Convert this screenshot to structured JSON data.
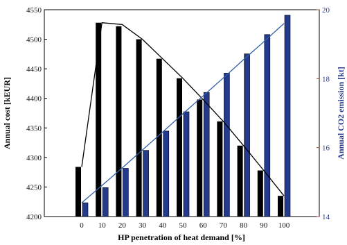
{
  "chart_data": {
    "type": "bar",
    "xlabel": "HP penetration of heat demand [%]",
    "ylabel_left": "Annual cost [kEUR]",
    "ylabel_right": "Annual CO2 emission [kt]",
    "ylim_left": [
      4200,
      4550
    ],
    "ylim_right": [
      14,
      20
    ],
    "yticks_left": [
      4200,
      4250,
      4300,
      4350,
      4400,
      4450,
      4500,
      4550
    ],
    "yticks_right": [
      14,
      16,
      18,
      20
    ],
    "categories": [
      "0",
      "10",
      "20",
      "30",
      "40",
      "50",
      "60",
      "70",
      "80",
      "90",
      "100"
    ],
    "series": [
      {
        "axis": "left",
        "color": "#000000",
        "values": [
          4284,
          4528,
          4522,
          4500,
          4467,
          4434,
          4398,
          4361,
          4320,
          4278,
          4235
        ]
      },
      {
        "axis": "right",
        "color": "#243a8c",
        "values": [
          14.4,
          14.84,
          15.4,
          15.92,
          16.48,
          17.04,
          17.6,
          18.16,
          18.72,
          19.28,
          19.84
        ]
      }
    ],
    "lines": [
      {
        "axis": "left",
        "color": "#000000",
        "values": [
          4284,
          4528,
          4525,
          4500,
          4467,
          4434,
          4398,
          4361,
          4320,
          4278,
          4235
        ]
      },
      {
        "axis": "right",
        "color": "#2e5fa8",
        "values": [
          14.4,
          14.9,
          15.41,
          15.93,
          16.45,
          16.98,
          17.5,
          18.02,
          18.55,
          19.07,
          19.6
        ]
      }
    ],
    "colors": {
      "left_axis": "#000000",
      "right_axis": "#243a8c",
      "right_tick_labels": "#c0392b"
    }
  }
}
